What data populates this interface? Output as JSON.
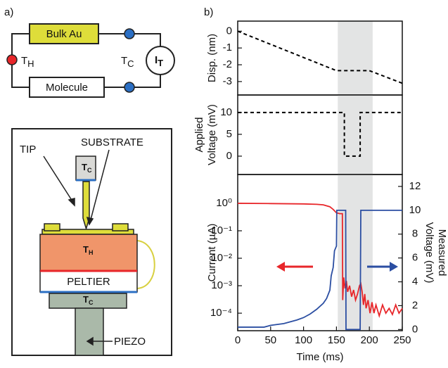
{
  "panel_labels": [
    "a)",
    "b)"
  ],
  "diagram": {
    "bulk": "Bulk Au",
    "molecule": "Molecule",
    "hot_junction": {
      "main": "T",
      "sub": "H"
    },
    "cold_junction": {
      "main": "T",
      "sub": "C"
    },
    "current": {
      "main": "I",
      "sub": "T"
    },
    "tip_label": "TIP",
    "substrate_label": "SUBSTRATE",
    "tip_temp": {
      "main": "T",
      "sub": "C"
    },
    "block_temp": {
      "main": "T",
      "sub": "H"
    },
    "peltier": "PELTIER",
    "base_temp": {
      "main": "T",
      "sub": "C"
    },
    "piezo": "PIEZO"
  },
  "chart_data": [
    {
      "type": "line",
      "ylabel": [
        "Disp. (nm)"
      ],
      "x": [
        0,
        150,
        200,
        250
      ],
      "values": [
        0,
        -2.35,
        -2.35,
        -3.1
      ],
      "color": "#000000",
      "linestyle": "dashed",
      "xlim": [
        0,
        250
      ],
      "ylim": [
        -3.8,
        0.6
      ],
      "yticks": [
        0,
        -1,
        -2,
        -3
      ],
      "shaded_x": [
        152,
        205
      ]
    },
    {
      "type": "line",
      "ylabel": [
        "Applied",
        "Voltage (mV)"
      ],
      "x": [
        0,
        162,
        162,
        186,
        186,
        250
      ],
      "values": [
        10,
        10,
        0,
        0,
        10,
        10
      ],
      "color": "#000000",
      "linestyle": "dashed",
      "xlim": [
        0,
        250
      ],
      "ylim": [
        -4.2,
        14
      ],
      "yticks": [
        0,
        5,
        10
      ],
      "shaded_x": [
        152,
        205
      ]
    },
    {
      "type": "line",
      "ylabel": [
        "Current (µA)"
      ],
      "y2label": [
        "Measured",
        "Voltage (mV)"
      ],
      "xlabel": "Time (ms)",
      "yscale": "log",
      "xlim": [
        0,
        250
      ],
      "xticks": [
        0,
        50,
        100,
        150,
        200,
        250
      ],
      "ylim": [
        2.3e-05,
        11.2
      ],
      "yticks": [
        {
          "value": 0.0001,
          "label": "10⁻⁴"
        },
        {
          "value": 0.001,
          "label": "10⁻³"
        },
        {
          "value": 0.01,
          "label": "10⁻²"
        },
        {
          "value": 0.1,
          "label": "10⁻¹"
        },
        {
          "value": 1,
          "label": "10⁰"
        }
      ],
      "y2lim": [
        -0.1,
        13
      ],
      "y2ticks": [
        0,
        2,
        4,
        6,
        8,
        10,
        12
      ],
      "shaded_x": [
        152,
        205
      ],
      "series": [
        {
          "color": "#e8262a",
          "x": [
            0,
            50,
            100,
            120,
            130,
            140,
            145,
            150,
            155,
            159,
            159.5,
            161,
            163,
            165,
            167,
            170,
            173,
            176,
            179,
            182,
            185,
            187,
            189,
            191,
            193,
            195,
            198,
            201,
            204,
            207,
            210,
            215,
            220,
            225,
            230,
            235,
            240,
            245,
            250
          ],
          "values": [
            1.0,
            0.98,
            0.95,
            0.92,
            0.88,
            0.75,
            0.6,
            0.45,
            0.42,
            0.42,
            0.0003,
            0.002,
            0.0008,
            0.0015,
            0.0006,
            0.001,
            0.0004,
            0.0007,
            0.0003,
            0.0005,
            0.001,
            0.0012,
            0.0006,
            0.0002,
            0.0005,
            0.00015,
            0.0003,
            0.0001,
            0.00025,
            0.0001,
            0.0002,
            8e-05,
            0.0002,
            0.0001,
            0.00015,
            9e-05,
            0.0002,
            0.0001,
            0.00015
          ]
        },
        {
          "color": "#2b4ea2",
          "axis": "y2",
          "x": [
            0,
            40,
            50,
            70,
            90,
            100,
            110,
            120,
            130,
            135,
            140,
            142,
            145,
            147,
            150,
            150.5,
            164,
            164.5,
            186,
            187,
            250
          ],
          "values": [
            0.2,
            0.2,
            0.35,
            0.5,
            0.8,
            1.0,
            1.3,
            1.7,
            2.2,
            2.6,
            3.3,
            4.5,
            5.2,
            6.6,
            7.0,
            10,
            10,
            0,
            0,
            10,
            10
          ]
        }
      ]
    }
  ]
}
